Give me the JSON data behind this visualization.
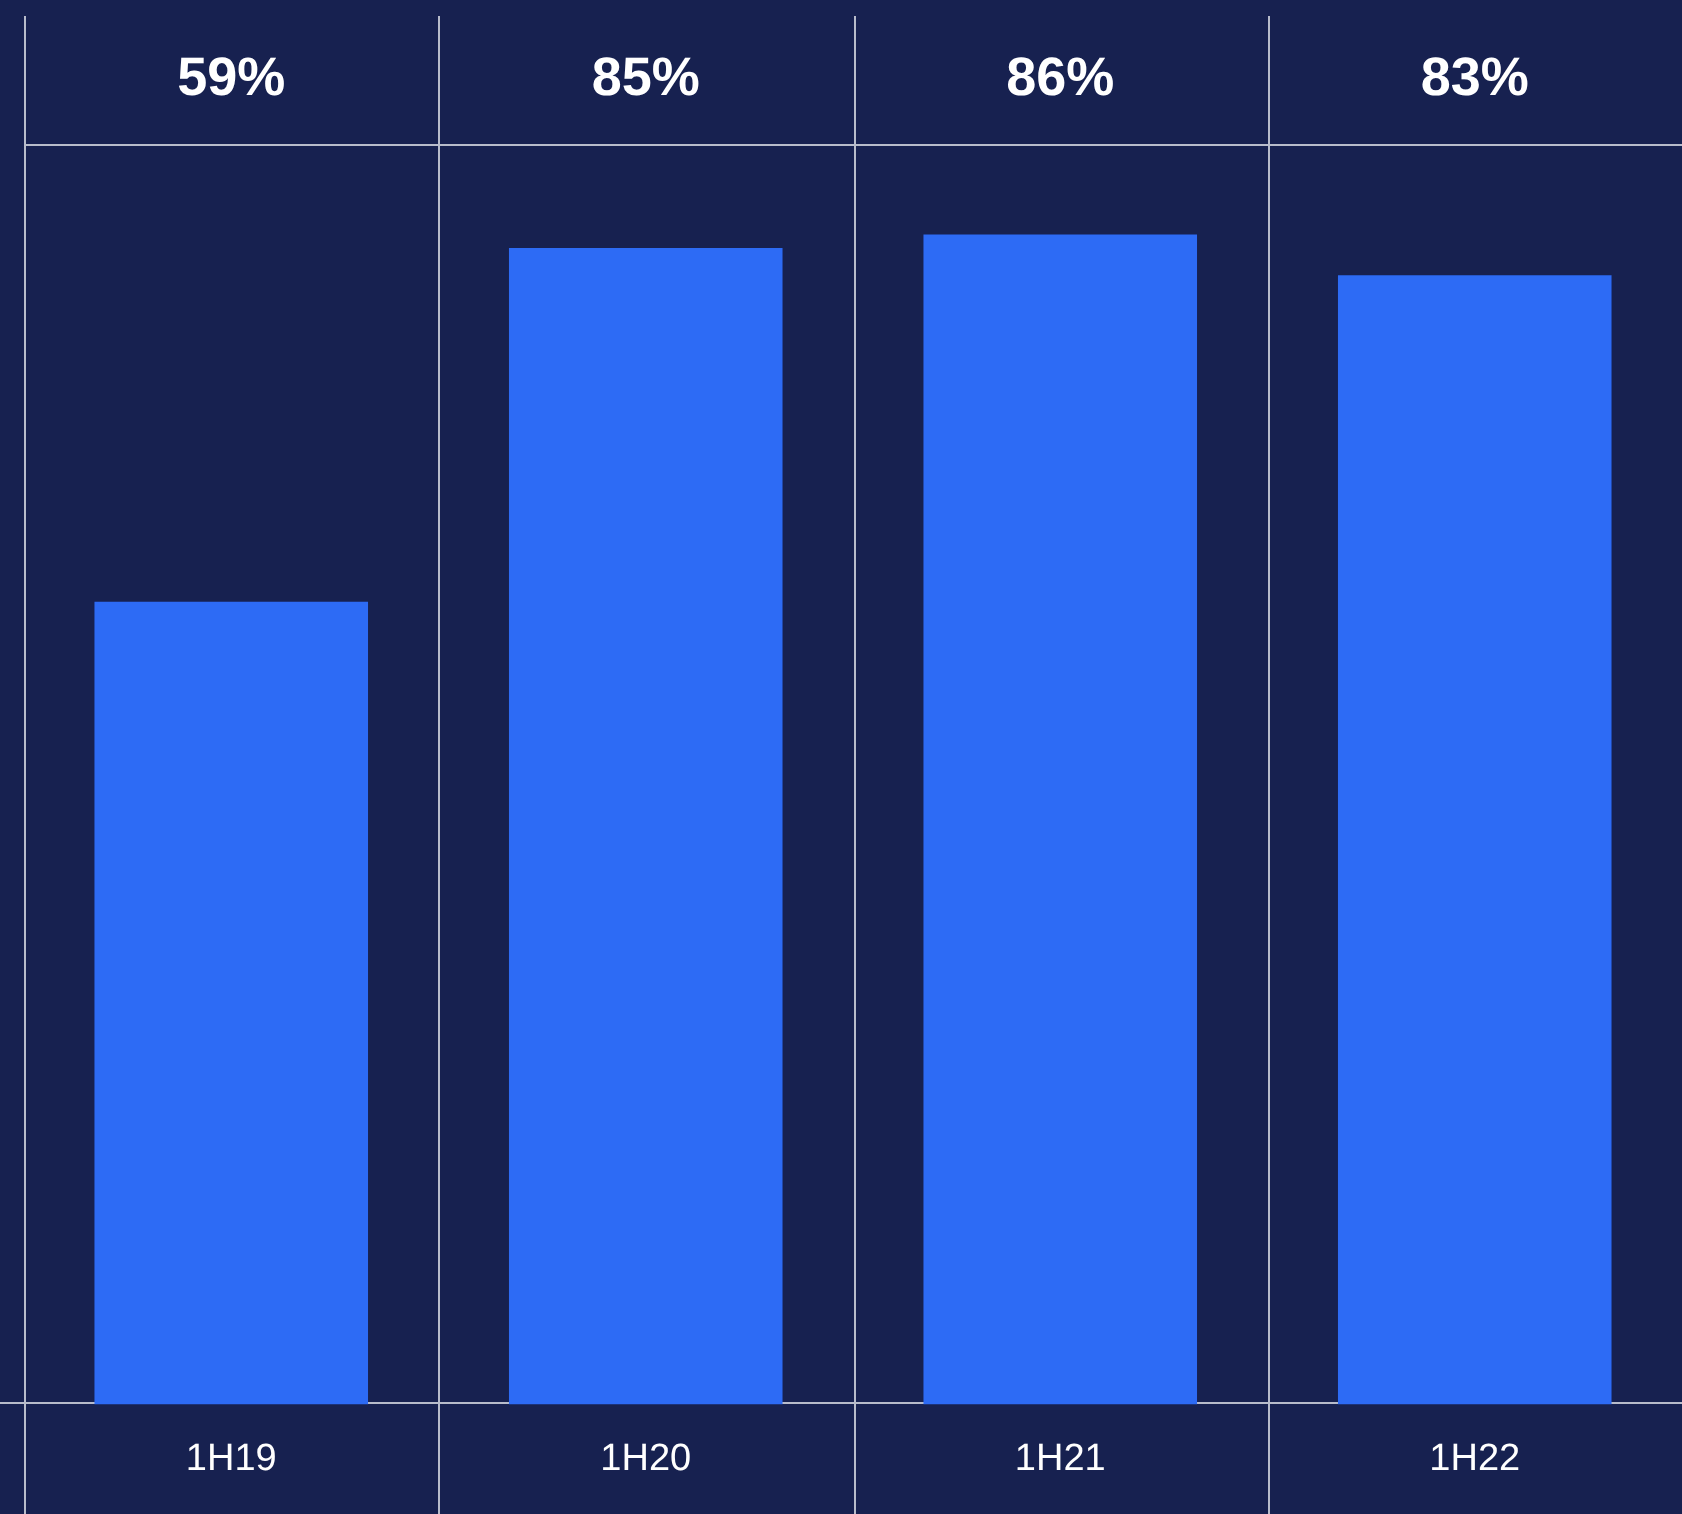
{
  "chart_data": {
    "type": "bar",
    "categories": [
      "1H19",
      "1H20",
      "1H21",
      "1H22"
    ],
    "values": [
      59,
      85,
      86,
      83
    ],
    "value_labels": [
      "59%",
      "85%",
      "86%",
      "83%"
    ],
    "color": "#2d6bf5",
    "grid": false,
    "legend": false,
    "tick_labels": "x"
  }
}
